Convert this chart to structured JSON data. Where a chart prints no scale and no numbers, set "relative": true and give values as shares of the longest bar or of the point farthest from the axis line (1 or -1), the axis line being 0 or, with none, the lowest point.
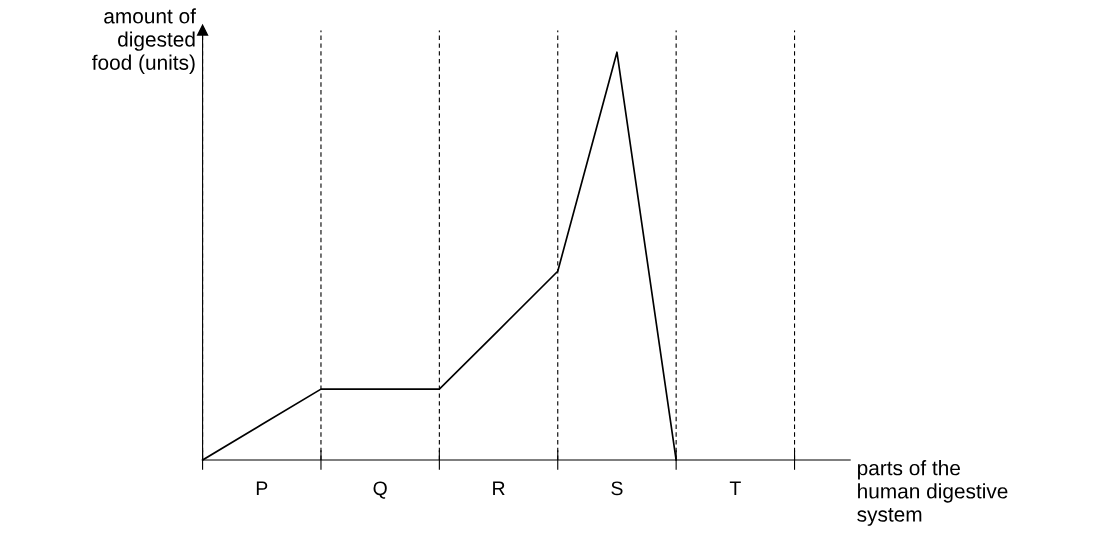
{
  "chart_data": {
    "type": "line",
    "relative": true,
    "xlabel": "parts of the\nhuman digestive\nsystem",
    "ylabel": "amount of\ndigested\nfood (units)",
    "categories": [
      null,
      "P",
      null,
      "Q",
      null,
      "R",
      null,
      "S",
      null,
      "T",
      null
    ],
    "series": [
      {
        "color": "#000000",
        "values": [
          0,
          0.087,
          0.174,
          0.174,
          0.174,
          0.318,
          0.463,
          1,
          0,
          null,
          null
        ]
      }
    ],
    "grid": "x",
    "legend": false,
    "marker": "none",
    "line_style": "solid"
  }
}
